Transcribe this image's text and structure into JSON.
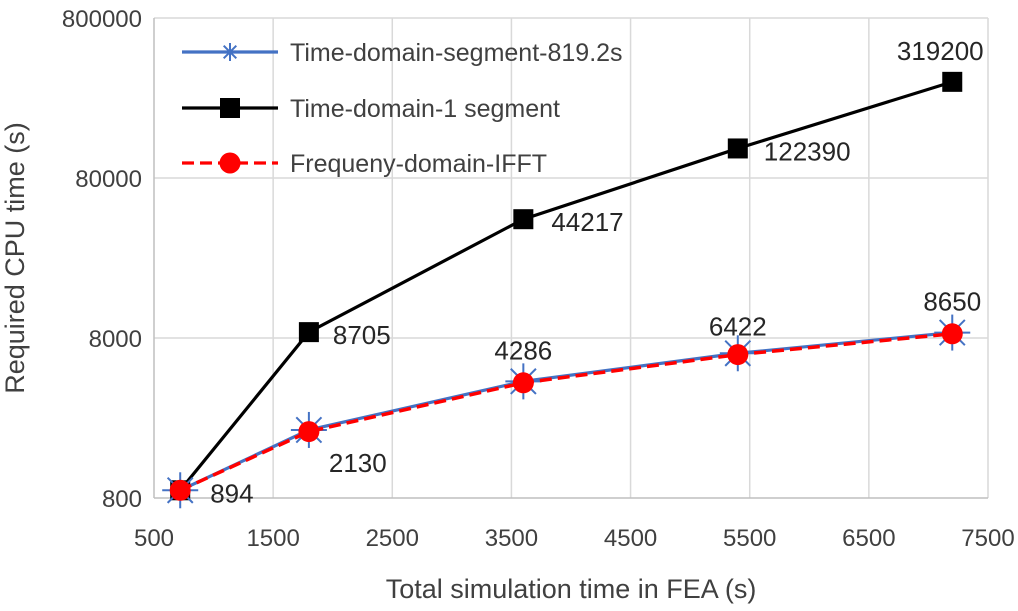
{
  "chart_data": {
    "type": "line",
    "xlabel": "Total simulation time in FEA (s)",
    "ylabel": "Required CPU time (s)",
    "x_axis": {
      "min": 500,
      "max": 7500,
      "ticks": [
        500,
        1500,
        2500,
        3500,
        4500,
        5500,
        6500,
        7500
      ]
    },
    "y_axis": {
      "scale": "log",
      "min": 800,
      "max": 800000,
      "ticks": [
        800,
        8000,
        80000,
        800000
      ]
    },
    "grid": true,
    "legend_position": "top-left",
    "x": [
      720,
      1800,
      3600,
      5400,
      7200
    ],
    "series": [
      {
        "name": "Time-domain-segment-819.2s",
        "values": [
          894,
          2130,
          4286,
          6422,
          8650
        ],
        "color": "#4472c4",
        "marker": "asterisk",
        "line_style": "solid",
        "labels": [
          "894",
          "2130",
          "4286",
          "6422",
          "8650"
        ]
      },
      {
        "name": "Time-domain-1 segment",
        "values": [
          894,
          8705,
          44217,
          122390,
          319200
        ],
        "color": "#000000",
        "marker": "square",
        "line_style": "solid",
        "labels": [
          "",
          "8705",
          "44217",
          "122390",
          "319200"
        ]
      },
      {
        "name": "Frequeny-domain-IFFT",
        "values": [
          894,
          2080,
          4200,
          6300,
          8500
        ],
        "color": "#ff0000",
        "marker": "circle",
        "line_style": "dashed",
        "labels": [
          "",
          "",
          "",
          "",
          ""
        ]
      }
    ]
  }
}
